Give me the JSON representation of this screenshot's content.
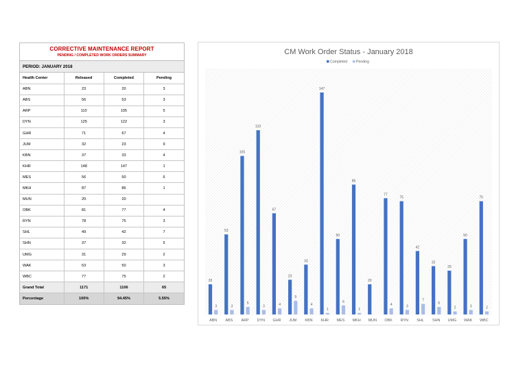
{
  "report": {
    "title": "CORRECTIVE MAINTENANCE REPORT",
    "subtitle": "PENDING / COMPLETED WORK ORDERS SUMMARY",
    "period": "PERIOD:  JANUARY 2018",
    "columns": [
      "Health Center",
      "Released",
      "Completed",
      "Pending"
    ],
    "rows": [
      [
        "ABN",
        "23",
        "20",
        "3"
      ],
      [
        "ABS",
        "56",
        "53",
        "3"
      ],
      [
        "ARP",
        "110",
        "105",
        "5"
      ],
      [
        "DYN",
        "125",
        "122",
        "3"
      ],
      [
        "GHR",
        "71",
        "67",
        "4"
      ],
      [
        "JUM",
        "32",
        "23",
        "9"
      ],
      [
        "KBN",
        "37",
        "33",
        "4"
      ],
      [
        "KHR",
        "148",
        "147",
        "1"
      ],
      [
        "MES",
        "56",
        "50",
        "6"
      ],
      [
        "MKH",
        "87",
        "86",
        "1"
      ],
      [
        "MUN",
        "20",
        "20",
        ""
      ],
      [
        "OBK",
        "81",
        "77",
        "4"
      ],
      [
        "RYN",
        "78",
        "75",
        "3"
      ],
      [
        "SHL",
        "49",
        "42",
        "7"
      ],
      [
        "SHN",
        "37",
        "32",
        "5"
      ],
      [
        "UMG",
        "31",
        "29",
        "2"
      ],
      [
        "WAK",
        "53",
        "50",
        "3"
      ],
      [
        "WBC",
        "77",
        "75",
        "2"
      ]
    ],
    "total": [
      "Grand Total",
      "1171",
      "1106",
      "65"
    ],
    "percentage": [
      "Percentage",
      "100%",
      "94.45%",
      "5.55%"
    ]
  },
  "chart_data": {
    "type": "bar",
    "title": "CM Work Order Status - January 2018",
    "legend_position": "top",
    "categories": [
      "ABN",
      "ABS",
      "ARP",
      "DYN",
      "GHR",
      "JUM",
      "KBN",
      "KHR",
      "MES",
      "MKH",
      "MUN",
      "OBK",
      "RYN",
      "SHL",
      "SHN",
      "UMG",
      "WAK",
      "WBC"
    ],
    "series": [
      {
        "name": "Completed",
        "color": "#4472c4",
        "values": [
          20,
          53,
          105,
          122,
          67,
          23,
          33,
          147,
          50,
          86,
          20,
          77,
          75,
          42,
          32,
          29,
          50,
          75
        ]
      },
      {
        "name": "Pending",
        "color": "#a9bde6",
        "values": [
          3,
          3,
          5,
          3,
          4,
          9,
          4,
          1,
          6,
          1,
          null,
          4,
          3,
          7,
          5,
          2,
          3,
          2
        ]
      }
    ],
    "ylim": [
      0,
      150
    ],
    "grid": false,
    "xlabel": "",
    "ylabel": ""
  }
}
